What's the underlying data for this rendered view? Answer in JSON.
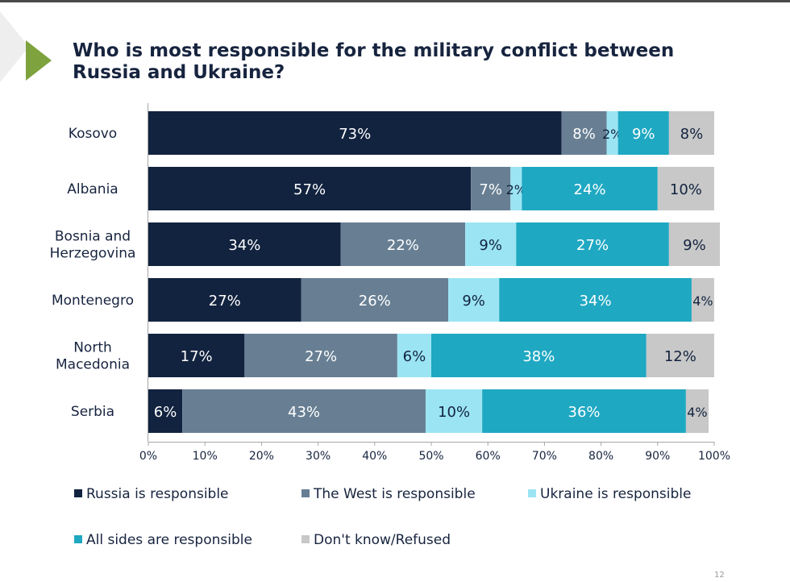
{
  "page": {
    "title": "Who is most responsible for the military conflict between Russia and Ukraine?",
    "page_number": "12"
  },
  "colors": {
    "russia": "#12233f",
    "west": "#687f93",
    "ukraine": "#9be4f4",
    "all": "#1fa8c2",
    "dk": "#c8c8c8",
    "accent": "#7ea23d"
  },
  "chart_data": {
    "type": "bar",
    "orientation": "horizontal",
    "stacked": true,
    "categories": [
      "Kosovo",
      "Albania",
      "Bosnia and Herzegovina",
      "Montenegro",
      "North Macedonia",
      "Serbia"
    ],
    "category_lines": [
      [
        "Kosovo"
      ],
      [
        "Albania"
      ],
      [
        "Bosnia and",
        "Herzegovina"
      ],
      [
        "Montenegro"
      ],
      [
        "North",
        "Macedonia"
      ],
      [
        "Serbia"
      ]
    ],
    "series": [
      {
        "name": "Russia is responsible",
        "key": "russia",
        "values": [
          73,
          57,
          34,
          27,
          17,
          6
        ]
      },
      {
        "name": "The West is responsible",
        "key": "west",
        "values": [
          8,
          7,
          22,
          26,
          27,
          43
        ]
      },
      {
        "name": "Ukraine is responsible",
        "key": "ukraine",
        "values": [
          2,
          2,
          9,
          9,
          6,
          10
        ]
      },
      {
        "name": "All sides are responsible",
        "key": "all",
        "values": [
          9,
          24,
          27,
          34,
          38,
          36
        ]
      },
      {
        "name": "Don't know/Refused",
        "key": "dk",
        "values": [
          8,
          10,
          9,
          4,
          12,
          4
        ]
      }
    ],
    "value_suffix": "%",
    "xlim": [
      0,
      100
    ],
    "xticks": [
      0,
      10,
      20,
      30,
      40,
      50,
      60,
      70,
      80,
      90,
      100
    ],
    "xtick_labels": [
      "0%",
      "10%",
      "20%",
      "30%",
      "40%",
      "50%",
      "60%",
      "70%",
      "80%",
      "90%",
      "100%"
    ],
    "legend_position": "bottom",
    "grid": false
  }
}
